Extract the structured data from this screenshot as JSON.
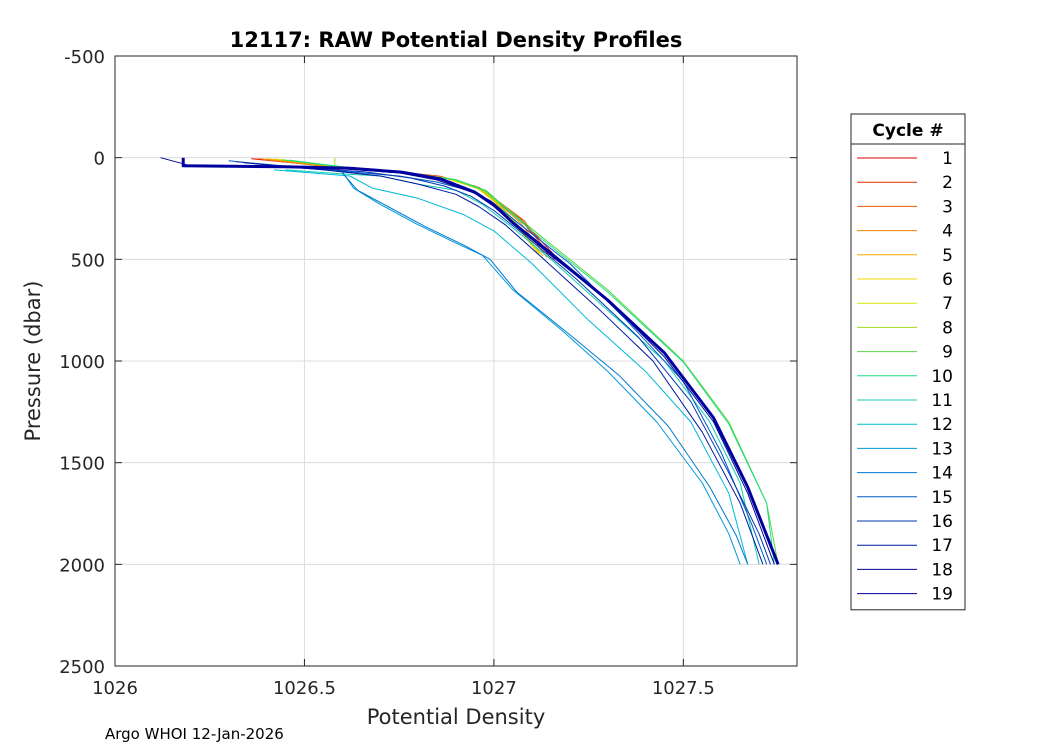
{
  "chart_data": {
    "type": "line",
    "title": "12117: RAW Potential Density Profiles",
    "xlabel": "Potential Density",
    "ylabel": "Pressure (dbar)",
    "xlim": [
      1026,
      1027.8
    ],
    "ylim": [
      -500,
      2500
    ],
    "y_reversed": true,
    "xticks": [
      1026,
      1026.5,
      1027,
      1027.5
    ],
    "xtick_labels": [
      "1026",
      "1026.5",
      "1027",
      "1027.5"
    ],
    "yticks": [
      -500,
      0,
      500,
      1000,
      1500,
      2000,
      2500
    ],
    "ytick_labels": [
      "-500",
      "0",
      "500",
      "1000",
      "1500",
      "2000",
      "2500"
    ],
    "grid": true,
    "legend": {
      "title": "Cycle #",
      "placement": "outside-right"
    },
    "series": [
      {
        "name": "1",
        "color": "#e00000",
        "points": [
          [
            1026.36,
            5
          ],
          [
            1026.55,
            40
          ],
          [
            1026.72,
            65
          ],
          [
            1026.85,
            90
          ],
          [
            1026.95,
            140
          ],
          [
            1026.99,
            190
          ],
          [
            1027.07,
            300
          ],
          [
            1027.17,
            500
          ]
        ]
      },
      {
        "name": "2",
        "color": "#e82a00",
        "points": [
          [
            1026.37,
            6
          ],
          [
            1026.56,
            42
          ],
          [
            1026.73,
            67
          ],
          [
            1026.86,
            92
          ],
          [
            1026.95,
            142
          ],
          [
            1026.99,
            195
          ],
          [
            1027.07,
            305
          ],
          [
            1027.16,
            500
          ]
        ]
      },
      {
        "name": "3",
        "color": "#ef5500",
        "points": [
          [
            1026.38,
            5
          ],
          [
            1026.57,
            40
          ],
          [
            1026.74,
            68
          ],
          [
            1026.86,
            95
          ],
          [
            1026.96,
            145
          ],
          [
            1027.0,
            198
          ],
          [
            1027.08,
            310
          ],
          [
            1027.15,
            495
          ]
        ]
      },
      {
        "name": "4",
        "color": "#f38000",
        "points": [
          [
            1026.39,
            8
          ],
          [
            1026.56,
            45
          ],
          [
            1026.74,
            70
          ],
          [
            1026.87,
            97
          ],
          [
            1026.96,
            150
          ],
          [
            1027.0,
            205
          ],
          [
            1027.07,
            320
          ],
          [
            1027.14,
            490
          ]
        ]
      },
      {
        "name": "5",
        "color": "#f5aa00",
        "points": [
          [
            1026.4,
            5
          ],
          [
            1026.58,
            43
          ],
          [
            1026.75,
            70
          ],
          [
            1026.87,
            100
          ],
          [
            1026.96,
            152
          ],
          [
            1027.0,
            210
          ],
          [
            1027.06,
            330
          ],
          [
            1027.13,
            485
          ]
        ]
      },
      {
        "name": "6",
        "color": "#f0d800",
        "points": [
          [
            1026.42,
            6
          ],
          [
            1026.58,
            45
          ],
          [
            1026.76,
            72
          ],
          [
            1026.88,
            102
          ],
          [
            1026.96,
            155
          ],
          [
            1027.0,
            215
          ],
          [
            1027.06,
            335
          ],
          [
            1027.12,
            480
          ]
        ]
      },
      {
        "name": "7",
        "color": "#d6e800",
        "points": [
          [
            1026.43,
            8
          ],
          [
            1026.6,
            47
          ],
          [
            1026.76,
            75
          ],
          [
            1026.88,
            105
          ],
          [
            1026.97,
            158
          ],
          [
            1027.01,
            220
          ],
          [
            1027.06,
            340
          ],
          [
            1027.12,
            470
          ]
        ]
      },
      {
        "name": "8",
        "color": "#9ddc1c",
        "points": [
          [
            1026.58,
            0
          ],
          [
            1026.58,
            45
          ],
          [
            1026.77,
            75
          ],
          [
            1026.89,
            105
          ],
          [
            1026.97,
            160
          ],
          [
            1027.01,
            222
          ],
          [
            1027.07,
            345
          ],
          [
            1027.15,
            480
          ]
        ]
      },
      {
        "name": "9",
        "color": "#55d840",
        "points": [
          [
            1026.44,
            10
          ],
          [
            1026.6,
            48
          ],
          [
            1026.78,
            77
          ],
          [
            1026.9,
            108
          ],
          [
            1026.98,
            162
          ],
          [
            1027.02,
            228
          ],
          [
            1027.1,
            350
          ],
          [
            1027.3,
            650
          ],
          [
            1027.5,
            1000
          ],
          [
            1027.62,
            1300
          ],
          [
            1027.72,
            1700
          ],
          [
            1027.75,
            2000
          ]
        ]
      },
      {
        "name": "10",
        "color": "#20dc80",
        "points": [
          [
            1026.46,
            12
          ],
          [
            1026.62,
            50
          ],
          [
            1026.79,
            80
          ],
          [
            1026.9,
            110
          ],
          [
            1026.98,
            165
          ],
          [
            1027.02,
            232
          ],
          [
            1027.1,
            360
          ],
          [
            1027.3,
            660
          ],
          [
            1027.5,
            1005
          ],
          [
            1027.62,
            1310
          ],
          [
            1027.72,
            1700
          ],
          [
            1027.74,
            2000
          ]
        ]
      },
      {
        "name": "11",
        "color": "#10d0b0",
        "points": [
          [
            1026.45,
            60
          ],
          [
            1026.6,
            80
          ],
          [
            1026.7,
            90
          ],
          [
            1026.8,
            130
          ],
          [
            1026.9,
            160
          ],
          [
            1026.97,
            230
          ],
          [
            1027.04,
            330
          ],
          [
            1027.15,
            500
          ],
          [
            1027.3,
            750
          ],
          [
            1027.45,
            1000
          ],
          [
            1027.57,
            1300
          ],
          [
            1027.65,
            1600
          ],
          [
            1027.7,
            2000
          ]
        ]
      },
      {
        "name": "12",
        "color": "#00b8d8",
        "points": [
          [
            1026.42,
            60
          ],
          [
            1026.55,
            80
          ],
          [
            1026.62,
            90
          ],
          [
            1026.68,
            150
          ],
          [
            1026.8,
            200
          ],
          [
            1026.92,
            280
          ],
          [
            1027.0,
            360
          ],
          [
            1027.1,
            520
          ],
          [
            1027.25,
            800
          ],
          [
            1027.4,
            1050
          ],
          [
            1027.52,
            1300
          ],
          [
            1027.62,
            1650
          ],
          [
            1027.67,
            2000
          ]
        ]
      },
      {
        "name": "13",
        "color": "#0098d8",
        "points": [
          [
            1026.6,
            70
          ],
          [
            1026.63,
            150
          ],
          [
            1026.7,
            230
          ],
          [
            1026.8,
            330
          ],
          [
            1026.9,
            420
          ],
          [
            1026.97,
            480
          ],
          [
            1027.05,
            650
          ],
          [
            1027.18,
            850
          ],
          [
            1027.3,
            1050
          ],
          [
            1027.43,
            1300
          ],
          [
            1027.55,
            1600
          ],
          [
            1027.62,
            1850
          ],
          [
            1027.65,
            2000
          ]
        ]
      },
      {
        "name": "14",
        "color": "#0078d0",
        "points": [
          [
            1026.6,
            75
          ],
          [
            1026.64,
            160
          ],
          [
            1026.72,
            240
          ],
          [
            1026.82,
            340
          ],
          [
            1026.92,
            430
          ],
          [
            1026.99,
            500
          ],
          [
            1027.06,
            660
          ],
          [
            1027.2,
            870
          ],
          [
            1027.33,
            1070
          ],
          [
            1027.46,
            1320
          ],
          [
            1027.57,
            1620
          ],
          [
            1027.64,
            1860
          ],
          [
            1027.67,
            2000
          ]
        ]
      },
      {
        "name": "15",
        "color": "#0058c8",
        "points": [
          [
            1026.3,
            15
          ],
          [
            1026.45,
            45
          ],
          [
            1026.62,
            70
          ],
          [
            1026.75,
            90
          ],
          [
            1026.85,
            120
          ],
          [
            1026.93,
            160
          ],
          [
            1026.99,
            210
          ],
          [
            1027.07,
            330
          ],
          [
            1027.2,
            520
          ],
          [
            1027.35,
            800
          ],
          [
            1027.5,
            1100
          ],
          [
            1027.6,
            1450
          ],
          [
            1027.68,
            1800
          ],
          [
            1027.72,
            2000
          ]
        ]
      },
      {
        "name": "16",
        "color": "#0038b0",
        "points": [
          [
            1026.32,
            20
          ],
          [
            1026.5,
            50
          ],
          [
            1026.66,
            70
          ],
          [
            1026.78,
            100
          ],
          [
            1026.87,
            140
          ],
          [
            1026.94,
            190
          ],
          [
            1027.0,
            260
          ],
          [
            1027.08,
            380
          ],
          [
            1027.22,
            600
          ],
          [
            1027.38,
            880
          ],
          [
            1027.52,
            1200
          ],
          [
            1027.62,
            1550
          ],
          [
            1027.7,
            1850
          ],
          [
            1027.73,
            2000
          ]
        ]
      },
      {
        "name": "17",
        "color": "#0018a0",
        "points": [
          [
            1026.34,
            25
          ],
          [
            1026.55,
            60
          ],
          [
            1026.7,
            90
          ],
          [
            1026.8,
            130
          ],
          [
            1026.9,
            180
          ],
          [
            1026.96,
            240
          ],
          [
            1027.03,
            330
          ],
          [
            1027.12,
            480
          ],
          [
            1027.28,
            750
          ],
          [
            1027.42,
            1000
          ],
          [
            1027.55,
            1350
          ],
          [
            1027.65,
            1700
          ],
          [
            1027.71,
            2000
          ]
        ]
      },
      {
        "name": "18",
        "color": "#000890",
        "points": [
          [
            1026.12,
            0
          ],
          [
            1026.2,
            40
          ],
          [
            1026.45,
            45
          ],
          [
            1026.6,
            55
          ],
          [
            1026.75,
            75
          ],
          [
            1026.85,
            110
          ],
          [
            1026.95,
            175
          ],
          [
            1027.0,
            240
          ],
          [
            1027.06,
            340
          ],
          [
            1027.15,
            480
          ],
          [
            1027.3,
            700
          ],
          [
            1027.45,
            980
          ],
          [
            1027.58,
            1300
          ],
          [
            1027.67,
            1650
          ],
          [
            1027.74,
            2000
          ]
        ]
      },
      {
        "name": "19",
        "color": "#0000a0",
        "points": [
          [
            1026.18,
            0
          ],
          [
            1026.18,
            40
          ],
          [
            1026.45,
            45
          ],
          [
            1026.62,
            52
          ],
          [
            1026.76,
            72
          ],
          [
            1026.86,
            105
          ],
          [
            1026.95,
            170
          ],
          [
            1027.0,
            232
          ],
          [
            1027.05,
            320
          ],
          [
            1027.15,
            470
          ],
          [
            1027.3,
            700
          ],
          [
            1027.45,
            960
          ],
          [
            1027.58,
            1280
          ],
          [
            1027.67,
            1620
          ],
          [
            1027.75,
            2000
          ]
        ]
      }
    ]
  },
  "footer": {
    "text": "Argo WHOI 12-Jan-2026"
  }
}
